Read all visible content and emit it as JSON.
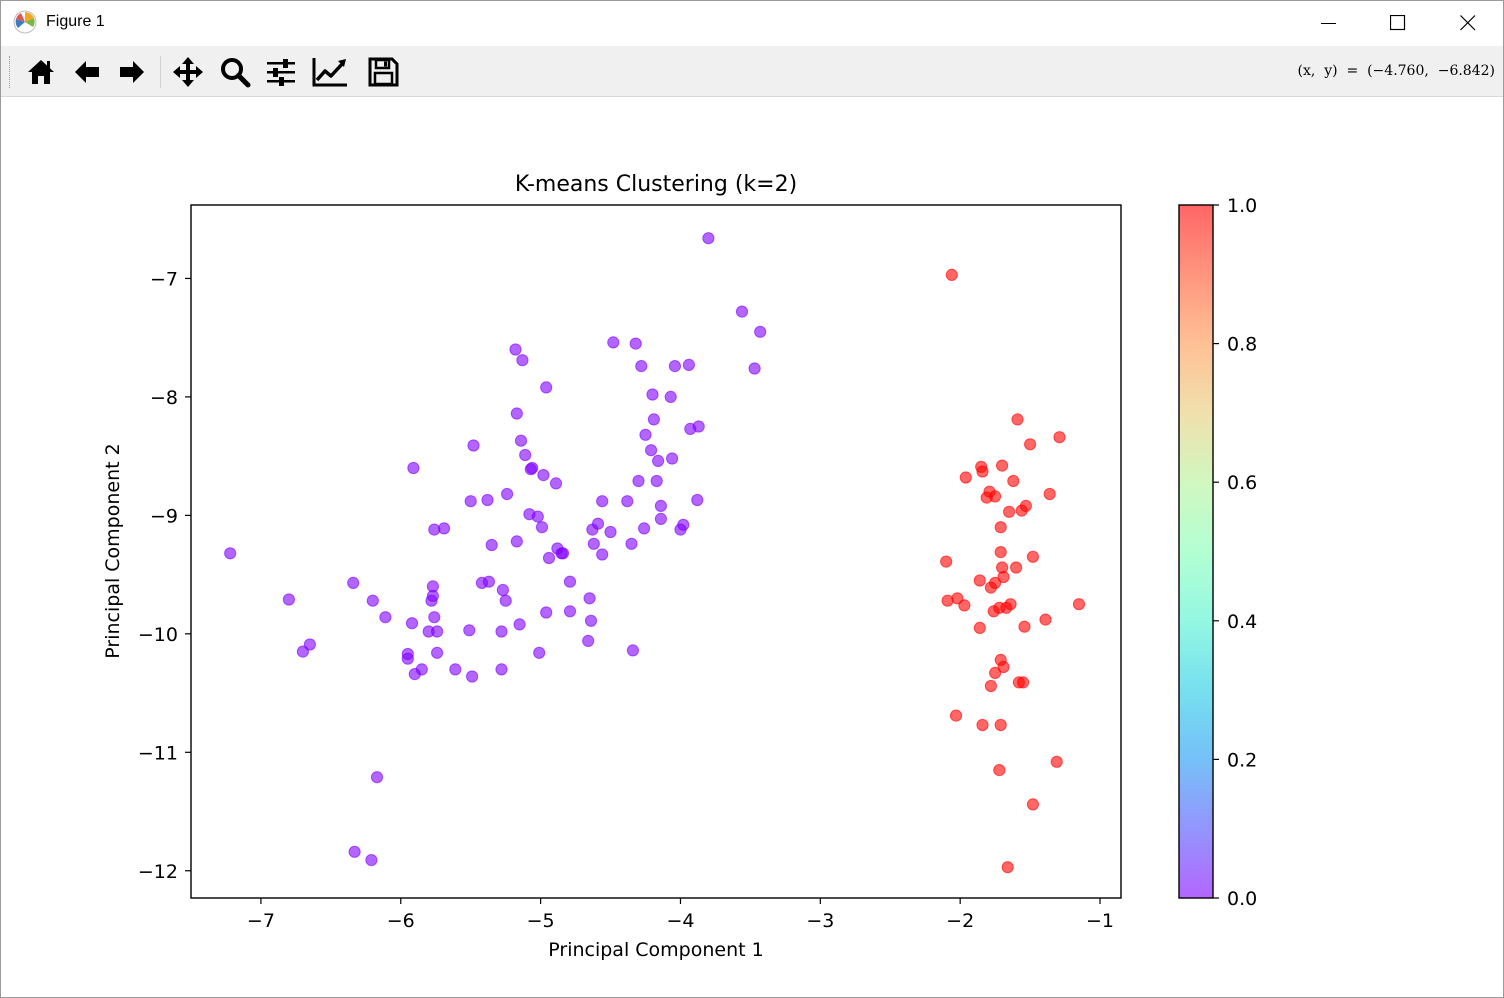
{
  "window": {
    "title": "Figure 1",
    "coords_readout": "(x,  y)  =  (−4.760,  −6.842)"
  },
  "toolbar": {
    "tools": [
      "home-icon",
      "back-icon",
      "forward-icon",
      "pan-icon",
      "zoom-icon",
      "configure-subplots-icon",
      "edit-axis-icon",
      "save-icon"
    ]
  },
  "chart_data": {
    "type": "scatter",
    "title": "K-means Clustering (k=2)",
    "xlabel": "Principal Component 1",
    "ylabel": "Principal Component 2",
    "xlim": [
      -7.5,
      -0.85
    ],
    "ylim": [
      -12.23,
      -6.38
    ],
    "xticks": [
      -7,
      -6,
      -5,
      -4,
      -3,
      -2,
      -1
    ],
    "yticks": [
      -12,
      -11,
      -10,
      -9,
      -8,
      -7
    ],
    "grid": false,
    "colormap": "rainbow",
    "alpha": 0.6,
    "colorbar": {
      "ticks": [
        "0.0",
        "0.2",
        "0.4",
        "0.6",
        "0.8",
        "1.0"
      ],
      "range": [
        0,
        1
      ]
    },
    "colors": {
      "cluster0": "#8000ff",
      "cluster1": "#ff0000"
    },
    "series": [
      {
        "cluster": 0,
        "points": [
          [
            -7.22,
            -9.32
          ],
          [
            -6.8,
            -9.71
          ],
          [
            -6.7,
            -10.15
          ],
          [
            -6.65,
            -10.09
          ],
          [
            -6.34,
            -9.57
          ],
          [
            -6.33,
            -11.84
          ],
          [
            -6.21,
            -11.91
          ],
          [
            -6.2,
            -9.72
          ],
          [
            -6.17,
            -11.21
          ],
          [
            -6.11,
            -9.86
          ],
          [
            -5.95,
            -10.17
          ],
          [
            -5.95,
            -10.21
          ],
          [
            -5.92,
            -9.91
          ],
          [
            -5.91,
            -8.6
          ],
          [
            -5.9,
            -10.34
          ],
          [
            -5.85,
            -10.3
          ],
          [
            -5.8,
            -9.98
          ],
          [
            -5.78,
            -9.72
          ],
          [
            -5.77,
            -9.68
          ],
          [
            -5.77,
            -9.6
          ],
          [
            -5.76,
            -9.86
          ],
          [
            -5.76,
            -9.12
          ],
          [
            -5.74,
            -10.16
          ],
          [
            -5.74,
            -9.98
          ],
          [
            -5.69,
            -9.11
          ],
          [
            -5.61,
            -10.3
          ],
          [
            -5.51,
            -9.97
          ],
          [
            -5.5,
            -8.88
          ],
          [
            -5.49,
            -10.36
          ],
          [
            -5.48,
            -8.41
          ],
          [
            -5.42,
            -9.57
          ],
          [
            -5.38,
            -8.87
          ],
          [
            -5.37,
            -9.56
          ],
          [
            -5.35,
            -9.25
          ],
          [
            -5.28,
            -10.3
          ],
          [
            -5.28,
            -9.98
          ],
          [
            -5.27,
            -9.63
          ],
          [
            -5.25,
            -9.72
          ],
          [
            -5.24,
            -8.82
          ],
          [
            -5.18,
            -7.6
          ],
          [
            -5.17,
            -8.14
          ],
          [
            -5.17,
            -9.22
          ],
          [
            -5.15,
            -9.92
          ],
          [
            -5.14,
            -8.37
          ],
          [
            -5.13,
            -7.69
          ],
          [
            -5.11,
            -8.49
          ],
          [
            -5.08,
            -8.99
          ],
          [
            -5.07,
            -8.61
          ],
          [
            -5.06,
            -8.6
          ],
          [
            -5.02,
            -9.01
          ],
          [
            -5.01,
            -10.16
          ],
          [
            -4.99,
            -9.1
          ],
          [
            -4.98,
            -8.66
          ],
          [
            -4.96,
            -9.82
          ],
          [
            -4.96,
            -7.92
          ],
          [
            -4.94,
            -9.36
          ],
          [
            -4.89,
            -8.73
          ],
          [
            -4.88,
            -9.28
          ],
          [
            -4.85,
            -9.32
          ],
          [
            -4.84,
            -9.32
          ],
          [
            -4.79,
            -9.81
          ],
          [
            -4.79,
            -9.56
          ],
          [
            -4.66,
            -10.06
          ],
          [
            -4.65,
            -9.7
          ],
          [
            -4.64,
            -9.89
          ],
          [
            -4.63,
            -9.12
          ],
          [
            -4.62,
            -9.24
          ],
          [
            -4.59,
            -9.07
          ],
          [
            -4.56,
            -9.33
          ],
          [
            -4.56,
            -8.88
          ],
          [
            -4.5,
            -9.14
          ],
          [
            -4.48,
            -7.54
          ],
          [
            -4.38,
            -8.88
          ],
          [
            -4.35,
            -9.24
          ],
          [
            -4.34,
            -10.14
          ],
          [
            -4.32,
            -7.55
          ],
          [
            -4.3,
            -8.71
          ],
          [
            -4.28,
            -7.74
          ],
          [
            -4.26,
            -9.11
          ],
          [
            -4.25,
            -8.32
          ],
          [
            -4.21,
            -8.45
          ],
          [
            -4.2,
            -7.98
          ],
          [
            -4.19,
            -8.19
          ],
          [
            -4.17,
            -8.71
          ],
          [
            -4.16,
            -8.54
          ],
          [
            -4.14,
            -9.03
          ],
          [
            -4.14,
            -8.92
          ],
          [
            -4.07,
            -8.0
          ],
          [
            -4.06,
            -8.52
          ],
          [
            -4.04,
            -7.74
          ],
          [
            -4.0,
            -9.12
          ],
          [
            -3.98,
            -9.08
          ],
          [
            -3.94,
            -7.73
          ],
          [
            -3.93,
            -8.27
          ],
          [
            -3.88,
            -8.87
          ],
          [
            -3.87,
            -8.25
          ],
          [
            -3.8,
            -6.66
          ],
          [
            -3.56,
            -7.28
          ],
          [
            -3.47,
            -7.76
          ],
          [
            -3.43,
            -7.45
          ]
        ]
      },
      {
        "cluster": 1,
        "points": [
          [
            -2.06,
            -6.97
          ],
          [
            -1.59,
            -8.19
          ],
          [
            -1.29,
            -8.34
          ],
          [
            -1.5,
            -8.4
          ],
          [
            -1.96,
            -8.68
          ],
          [
            -1.85,
            -8.59
          ],
          [
            -1.84,
            -8.63
          ],
          [
            -1.7,
            -8.58
          ],
          [
            -1.62,
            -8.71
          ],
          [
            -1.79,
            -8.8
          ],
          [
            -1.81,
            -8.85
          ],
          [
            -1.75,
            -8.84
          ],
          [
            -1.36,
            -8.82
          ],
          [
            -1.53,
            -8.92
          ],
          [
            -1.56,
            -8.96
          ],
          [
            -1.65,
            -8.97
          ],
          [
            -1.71,
            -9.1
          ],
          [
            -1.71,
            -9.31
          ],
          [
            -1.48,
            -9.35
          ],
          [
            -2.1,
            -9.39
          ],
          [
            -1.7,
            -9.44
          ],
          [
            -1.6,
            -9.44
          ],
          [
            -1.69,
            -9.52
          ],
          [
            -1.86,
            -9.55
          ],
          [
            -1.75,
            -9.57
          ],
          [
            -1.78,
            -9.61
          ],
          [
            -2.09,
            -9.72
          ],
          [
            -2.02,
            -9.7
          ],
          [
            -1.97,
            -9.76
          ],
          [
            -1.64,
            -9.75
          ],
          [
            -1.67,
            -9.78
          ],
          [
            -1.72,
            -9.78
          ],
          [
            -1.76,
            -9.81
          ],
          [
            -1.15,
            -9.75
          ],
          [
            -1.39,
            -9.88
          ],
          [
            -1.54,
            -9.94
          ],
          [
            -1.86,
            -9.95
          ],
          [
            -1.71,
            -10.22
          ],
          [
            -1.69,
            -10.28
          ],
          [
            -1.75,
            -10.33
          ],
          [
            -1.58,
            -10.41
          ],
          [
            -1.55,
            -10.41
          ],
          [
            -1.78,
            -10.44
          ],
          [
            -2.03,
            -10.69
          ],
          [
            -1.84,
            -10.77
          ],
          [
            -1.71,
            -10.77
          ],
          [
            -1.31,
            -11.08
          ],
          [
            -1.72,
            -11.15
          ],
          [
            -1.48,
            -11.44
          ],
          [
            -1.66,
            -11.97
          ]
        ]
      }
    ]
  }
}
